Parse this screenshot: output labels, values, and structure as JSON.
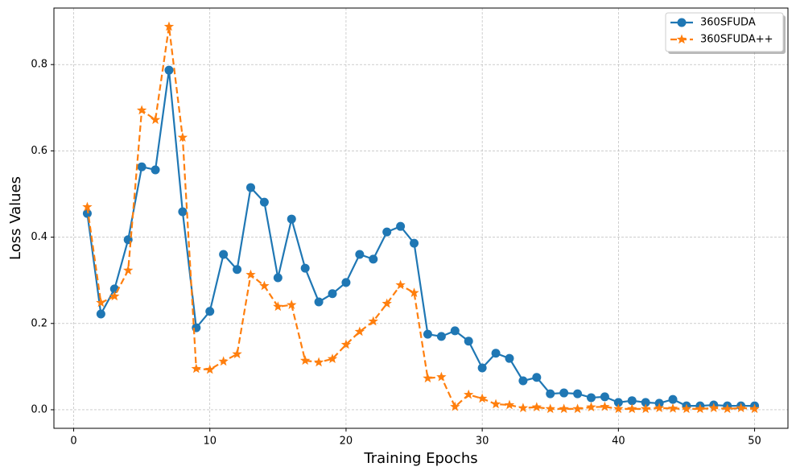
{
  "chart_data": {
    "type": "line",
    "x_label": "Training Epochs",
    "y_label": "Loss Values",
    "x": [
      1,
      2,
      3,
      4,
      5,
      6,
      7,
      8,
      9,
      10,
      11,
      12,
      13,
      14,
      15,
      16,
      17,
      18,
      19,
      20,
      21,
      22,
      23,
      24,
      25,
      26,
      27,
      28,
      29,
      30,
      31,
      32,
      33,
      34,
      35,
      36,
      37,
      38,
      39,
      40,
      41,
      42,
      43,
      44,
      45,
      46,
      47,
      48,
      49,
      50
    ],
    "series": [
      {
        "name": "360SFUDA",
        "color": "#1f77b4",
        "marker": "circle",
        "linestyle": "solid",
        "values": [
          0.455,
          0.222,
          0.28,
          0.394,
          0.563,
          0.556,
          0.787,
          0.459,
          0.19,
          0.228,
          0.36,
          0.325,
          0.515,
          0.481,
          0.306,
          0.442,
          0.328,
          0.25,
          0.269,
          0.295,
          0.36,
          0.349,
          0.412,
          0.425,
          0.386,
          0.175,
          0.17,
          0.183,
          0.159,
          0.097,
          0.131,
          0.119,
          0.067,
          0.075,
          0.037,
          0.039,
          0.037,
          0.028,
          0.03,
          0.017,
          0.021,
          0.017,
          0.015,
          0.024,
          0.009,
          0.009,
          0.011,
          0.009,
          0.009,
          0.009
        ]
      },
      {
        "name": "360SFUDA++",
        "color": "#ff7f0e",
        "marker": "star",
        "linestyle": "dashed",
        "values": [
          0.47,
          0.248,
          0.263,
          0.323,
          0.694,
          0.672,
          0.888,
          0.631,
          0.095,
          0.093,
          0.112,
          0.129,
          0.313,
          0.287,
          0.239,
          0.243,
          0.114,
          0.11,
          0.118,
          0.151,
          0.181,
          0.205,
          0.246,
          0.289,
          0.271,
          0.073,
          0.076,
          0.007,
          0.035,
          0.026,
          0.013,
          0.011,
          0.004,
          0.006,
          0.002,
          0.002,
          0.002,
          0.006,
          0.007,
          0.002,
          0.002,
          0.002,
          0.004,
          0.003,
          0.002,
          0.002,
          0.004,
          0.002,
          0.004,
          0.002
        ]
      }
    ],
    "xlim": [
      -1.45,
      52.45
    ],
    "ylim": [
      -0.043,
      0.931
    ],
    "xticks": [
      0,
      10,
      20,
      30,
      40,
      50
    ],
    "yticks": [
      {
        "value": 0,
        "label": "0.0"
      },
      {
        "value": 0.2,
        "label": "0.2"
      },
      {
        "value": 0.4,
        "label": "0.4"
      },
      {
        "value": 0.6,
        "label": "0.6"
      },
      {
        "value": 0.8,
        "label": "0.8"
      }
    ],
    "grid": true,
    "legend": "upper right"
  }
}
